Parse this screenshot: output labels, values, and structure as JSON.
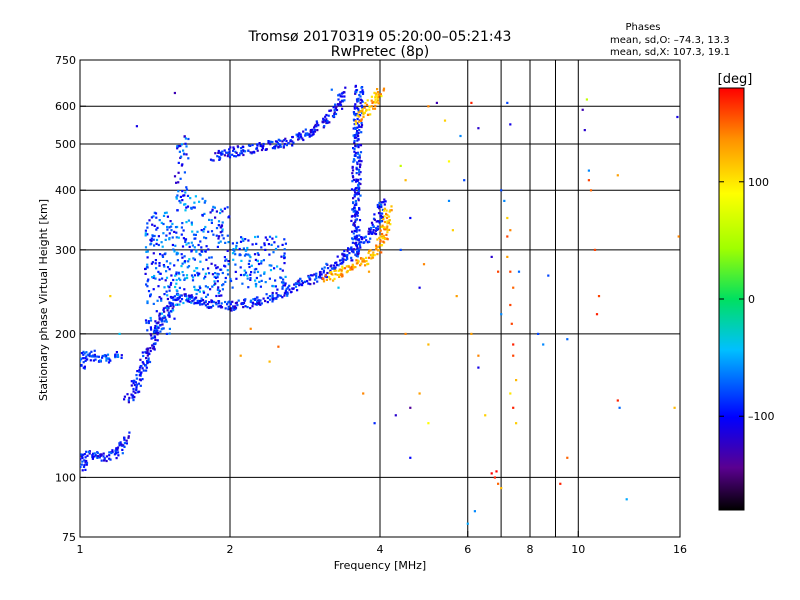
{
  "chart_data": {
    "type": "scatter",
    "title": "Tromsø 20170319 05:20:00–05:21:43",
    "subtitle": "RwPretec (8p)",
    "phase_header": "Phases",
    "phase_stats": [
      "mean, sd,O: –74.3, 13.3",
      "mean, sd,X: 107.3, 19.1"
    ],
    "xlabel": "Frequency [MHz]",
    "ylabel": "Stationary phase Virtual Height [km]",
    "x_scale": "log",
    "y_scale": "log",
    "xlim": [
      1,
      16
    ],
    "ylim": [
      75,
      750
    ],
    "grid": true,
    "x_ticks": [
      {
        "value": 1,
        "label": "1",
        "grid": false
      },
      {
        "value": 2,
        "label": "2",
        "grid": true
      },
      {
        "value": 4,
        "label": "4",
        "grid": true
      },
      {
        "value": 6,
        "label": "6",
        "grid": true
      },
      {
        "value": 8,
        "label": "8",
        "grid": true
      },
      {
        "value": 10,
        "label": "10",
        "grid": true
      },
      {
        "value": 16,
        "label": "16",
        "grid": false
      }
    ],
    "x_minor_grid": [
      7,
      9
    ],
    "y_ticks": [
      {
        "value": 75,
        "label": "75",
        "grid": false
      },
      {
        "value": 100,
        "label": "100",
        "grid": true
      },
      {
        "value": 200,
        "label": "200",
        "grid": true
      },
      {
        "value": 300,
        "label": "300",
        "grid": true
      },
      {
        "value": 400,
        "label": "400",
        "grid": true
      },
      {
        "value": 500,
        "label": "500",
        "grid": true
      },
      {
        "value": 600,
        "label": "600",
        "grid": true
      },
      {
        "value": 750,
        "label": "750",
        "grid": false
      }
    ],
    "colorbar": {
      "label": "[deg]",
      "range": [
        -180,
        180
      ],
      "ticks": [
        {
          "value": 100,
          "label": "100"
        },
        {
          "value": 0,
          "label": "0"
        },
        {
          "value": -100,
          "label": "–100"
        }
      ]
    },
    "traces": [
      {
        "kind": "o-low",
        "phase": -85,
        "points": [
          [
            1.0,
            170
          ],
          [
            1.02,
            180
          ],
          [
            1.05,
            182
          ],
          [
            1.08,
            178
          ],
          [
            1.12,
            176
          ],
          [
            1.15,
            178
          ],
          [
            1.18,
            180
          ],
          [
            1.2,
            178
          ]
        ]
      },
      {
        "kind": "o-low2",
        "phase": -95,
        "points": [
          [
            1.0,
            104
          ],
          [
            1.03,
            112
          ],
          [
            1.07,
            111
          ],
          [
            1.12,
            110
          ],
          [
            1.16,
            111
          ],
          [
            1.2,
            115
          ],
          [
            1.24,
            122
          ]
        ]
      },
      {
        "kind": "o-rise",
        "phase": -100,
        "points": [
          [
            1.25,
            145
          ],
          [
            1.28,
            150
          ],
          [
            1.3,
            160
          ],
          [
            1.35,
            175
          ],
          [
            1.4,
            190
          ],
          [
            1.45,
            210
          ],
          [
            1.5,
            228
          ],
          [
            1.55,
            236
          ],
          [
            1.6,
            242
          ]
        ]
      },
      {
        "kind": "o-main",
        "phase": -95,
        "points": [
          [
            1.6,
            240
          ],
          [
            1.8,
            232
          ],
          [
            2.0,
            228
          ],
          [
            2.2,
            232
          ],
          [
            2.4,
            238
          ],
          [
            2.6,
            246
          ],
          [
            2.8,
            256
          ],
          [
            3.0,
            264
          ],
          [
            3.2,
            276
          ],
          [
            3.4,
            290
          ],
          [
            3.6,
            306
          ],
          [
            3.8,
            322
          ],
          [
            3.95,
            340
          ],
          [
            4.05,
            380
          ]
        ]
      },
      {
        "kind": "o-upper",
        "phase": -100,
        "points": [
          [
            1.85,
            470
          ],
          [
            2.0,
            480
          ],
          [
            2.3,
            492
          ],
          [
            2.6,
            505
          ],
          [
            2.8,
            522
          ],
          [
            3.0,
            545
          ],
          [
            3.15,
            572
          ],
          [
            3.3,
            605
          ],
          [
            3.4,
            645
          ]
        ]
      },
      {
        "kind": "o-vert",
        "phase": -95,
        "points": [
          [
            3.55,
            290
          ],
          [
            3.57,
            330
          ],
          [
            3.58,
            380
          ],
          [
            3.59,
            430
          ],
          [
            3.6,
            480
          ],
          [
            3.61,
            540
          ],
          [
            3.62,
            600
          ],
          [
            3.63,
            660
          ]
        ]
      },
      {
        "kind": "x-lower",
        "phase": 125,
        "points": [
          [
            3.1,
            262
          ],
          [
            3.3,
            268
          ],
          [
            3.5,
            276
          ],
          [
            3.7,
            284
          ],
          [
            3.85,
            294
          ],
          [
            4.0,
            305
          ],
          [
            4.08,
            320
          ],
          [
            4.12,
            340
          ],
          [
            4.15,
            365
          ]
        ]
      },
      {
        "kind": "x-upper",
        "phase": 120,
        "points": [
          [
            3.62,
            560
          ],
          [
            3.75,
            585
          ],
          [
            3.85,
            605
          ],
          [
            3.95,
            630
          ],
          [
            4.0,
            655
          ]
        ]
      }
    ],
    "clouds": [
      {
        "kind": "o-spread-a",
        "phase": -80,
        "x_range": [
          1.35,
          1.55
        ],
        "y_range": [
          200,
          360
        ]
      },
      {
        "kind": "o-spread-b",
        "phase": -70,
        "x_range": [
          1.55,
          1.8
        ],
        "y_range": [
          230,
          390
        ]
      },
      {
        "kind": "o-spread-c",
        "phase": -85,
        "x_range": [
          1.8,
          2.0
        ],
        "y_range": [
          240,
          370
        ]
      },
      {
        "kind": "o-spread-d",
        "phase": -90,
        "x_range": [
          1.55,
          1.65
        ],
        "y_range": [
          380,
          520
        ]
      },
      {
        "kind": "o-spread-e",
        "phase": -75,
        "x_range": [
          2.0,
          2.6
        ],
        "y_range": [
          250,
          320
        ]
      }
    ],
    "scatter": [
      [
        1.55,
        640,
        -130
      ],
      [
        1.3,
        545,
        -110
      ],
      [
        1.15,
        240,
        110
      ],
      [
        1.2,
        200,
        -40
      ],
      [
        2.1,
        180,
        130
      ],
      [
        2.2,
        205,
        140
      ],
      [
        2.4,
        175,
        120
      ],
      [
        2.5,
        188,
        150
      ],
      [
        3.3,
        250,
        -40
      ],
      [
        3.8,
        270,
        130
      ],
      [
        4.4,
        450,
        60
      ],
      [
        4.5,
        420,
        120
      ],
      [
        4.4,
        300,
        -80
      ],
      [
        4.6,
        350,
        -100
      ],
      [
        4.8,
        250,
        -110
      ],
      [
        4.9,
        280,
        140
      ],
      [
        5.0,
        190,
        120
      ],
      [
        5.0,
        600,
        140
      ],
      [
        5.2,
        610,
        -130
      ],
      [
        5.4,
        560,
        110
      ],
      [
        5.5,
        460,
        90
      ],
      [
        5.5,
        380,
        -60
      ],
      [
        5.6,
        330,
        110
      ],
      [
        5.7,
        240,
        130
      ],
      [
        5.8,
        520,
        -60
      ],
      [
        5.9,
        420,
        -80
      ],
      [
        6.1,
        610,
        170
      ],
      [
        6.3,
        170,
        -110
      ],
      [
        6.3,
        180,
        140
      ],
      [
        6.1,
        200,
        130
      ],
      [
        6.3,
        540,
        -120
      ],
      [
        6.7,
        290,
        -120
      ],
      [
        6.9,
        270,
        160
      ],
      [
        7.0,
        400,
        -80
      ],
      [
        7.1,
        380,
        -60
      ],
      [
        7.2,
        350,
        110
      ],
      [
        7.3,
        330,
        140
      ],
      [
        7.2,
        320,
        160
      ],
      [
        7.2,
        290,
        130
      ],
      [
        7.3,
        270,
        160
      ],
      [
        7.4,
        250,
        150
      ],
      [
        7.3,
        230,
        160
      ],
      [
        7.35,
        210,
        160
      ],
      [
        7.4,
        190,
        170
      ],
      [
        7.4,
        180,
        160
      ],
      [
        7.5,
        160,
        120
      ],
      [
        7.3,
        150,
        100
      ],
      [
        7.4,
        140,
        170
      ],
      [
        7.5,
        130,
        110
      ],
      [
        6.5,
        135,
        110
      ],
      [
        7.0,
        220,
        -60
      ],
      [
        7.6,
        270,
        -70
      ],
      [
        7.2,
        610,
        -80
      ],
      [
        7.3,
        550,
        -110
      ],
      [
        8.3,
        200,
        -80
      ],
      [
        8.5,
        190,
        -60
      ],
      [
        8.7,
        265,
        -80
      ],
      [
        9.5,
        195,
        -70
      ],
      [
        9.5,
        110,
        150
      ],
      [
        9.2,
        97,
        170
      ],
      [
        10.2,
        590,
        -130
      ],
      [
        10.3,
        535,
        -120
      ],
      [
        10.4,
        620,
        60
      ],
      [
        10.5,
        440,
        -60
      ],
      [
        10.5,
        420,
        160
      ],
      [
        10.6,
        400,
        150
      ],
      [
        10.8,
        300,
        160
      ],
      [
        10.9,
        220,
        170
      ],
      [
        11.0,
        240,
        160
      ],
      [
        12.0,
        430,
        130
      ],
      [
        12.0,
        145,
        170
      ],
      [
        12.1,
        140,
        -70
      ],
      [
        12.5,
        90,
        -50
      ],
      [
        15.8,
        570,
        -110
      ],
      [
        15.9,
        320,
        140
      ],
      [
        15.6,
        140,
        120
      ],
      [
        6.7,
        102,
        190
      ],
      [
        6.8,
        100,
        170
      ],
      [
        6.85,
        103,
        180
      ],
      [
        6.9,
        97,
        150
      ],
      [
        7.0,
        95,
        120
      ],
      [
        6.0,
        80,
        -50
      ],
      [
        6.2,
        85,
        -60
      ],
      [
        3.9,
        130,
        -90
      ],
      [
        3.7,
        150,
        140
      ],
      [
        4.3,
        135,
        -120
      ],
      [
        4.6,
        140,
        -140
      ],
      [
        4.8,
        150,
        130
      ],
      [
        5.0,
        130,
        90
      ],
      [
        4.6,
        110,
        -100
      ],
      [
        4.5,
        200,
        140
      ],
      [
        3.2,
        650,
        -70
      ],
      [
        3.3,
        620,
        -90
      ]
    ]
  }
}
